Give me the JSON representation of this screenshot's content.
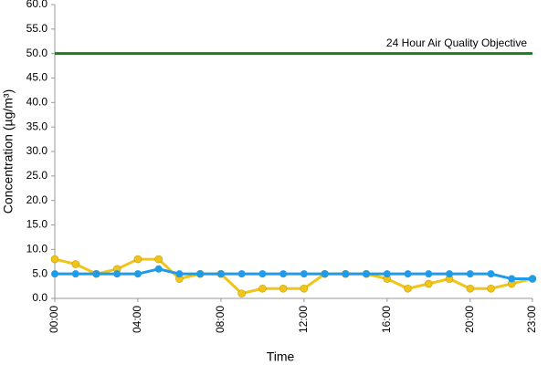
{
  "chart_data": {
    "type": "line",
    "x_label": "Time",
    "y_label": "Concentration (µg/m³)",
    "categories": [
      "00:00",
      null,
      null,
      null,
      "04:00",
      null,
      null,
      null,
      "08:00",
      null,
      null,
      null,
      "12:00",
      null,
      null,
      null,
      "16:00",
      null,
      null,
      null,
      "20:00",
      null,
      null,
      "23:00"
    ],
    "series": [
      {
        "color": "#f0c419",
        "values": [
          8,
          7,
          5,
          6,
          8,
          8,
          4,
          5,
          5,
          1,
          2,
          2,
          2,
          5,
          5,
          5,
          4,
          2,
          3,
          4,
          2,
          2,
          3,
          4
        ]
      },
      {
        "color": "#1e9be9",
        "values": [
          5,
          5,
          5,
          5,
          5,
          6,
          5,
          5,
          5,
          5,
          5,
          5,
          5,
          5,
          5,
          5,
          5,
          5,
          5,
          5,
          5,
          5,
          4,
          4
        ]
      }
    ],
    "objective": {
      "value": 50,
      "label": "24 Hour Air Quality Objective",
      "color": "#1f7a1f"
    },
    "ylim": [
      0,
      60
    ],
    "yticks": [
      {
        "value": 0,
        "label": "0.0"
      },
      {
        "value": 5,
        "label": "5.0"
      },
      {
        "value": 10,
        "label": "10.0"
      },
      {
        "value": 15,
        "label": "15.0"
      },
      {
        "value": 20,
        "label": "20.0"
      },
      {
        "value": 25,
        "label": "25.0"
      },
      {
        "value": 30,
        "label": "30.0"
      },
      {
        "value": 35,
        "label": "35.0"
      },
      {
        "value": 40,
        "label": "40.0"
      },
      {
        "value": 45,
        "label": "45.0"
      },
      {
        "value": 50,
        "label": "50.0"
      },
      {
        "value": 55,
        "label": "55.0"
      },
      {
        "value": 60,
        "label": "60.0"
      }
    ],
    "grid": false
  }
}
